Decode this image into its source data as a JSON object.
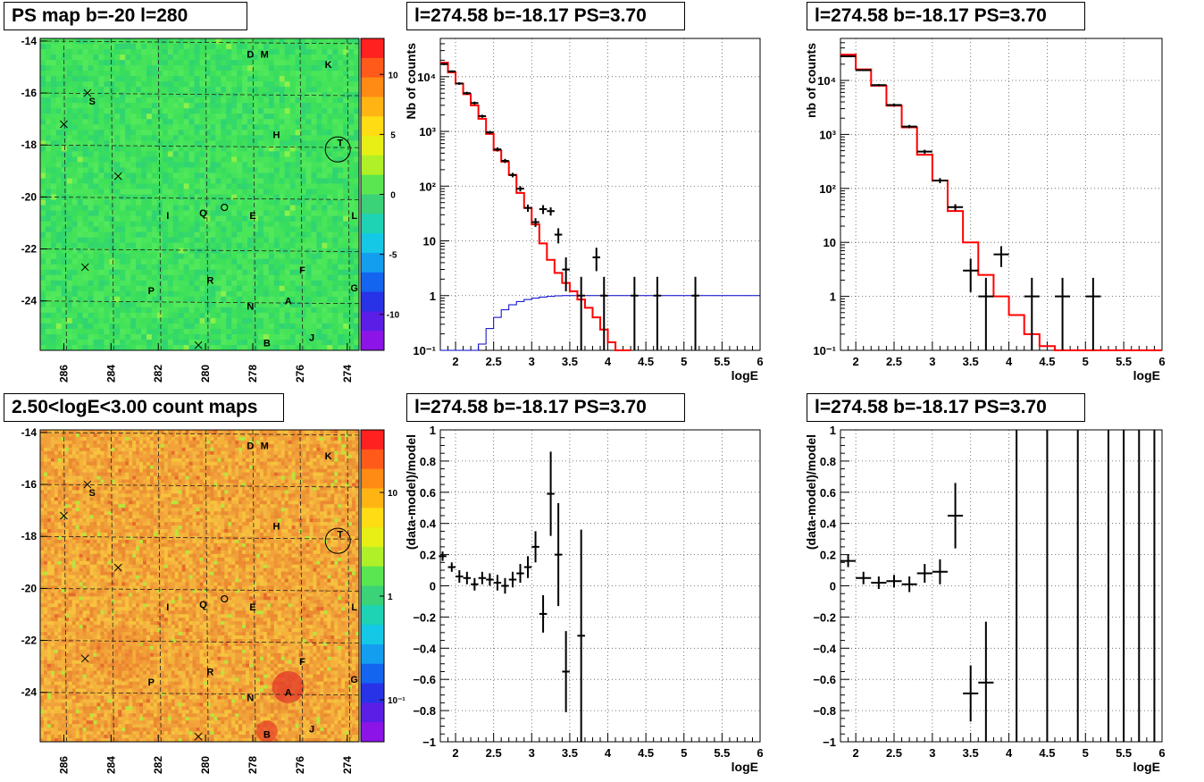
{
  "panel_titles": {
    "map_top": "PS map b=-20 l=280",
    "map_bottom": "2.50<logE<3.00 count maps",
    "spec_left": "l=274.58 b=-18.17 PS=3.70",
    "spec_right": "l=274.58 b=-18.17 PS=3.70",
    "resid_left": "l=274.58 b=-18.17 PS=3.70",
    "resid_right": "l=274.58 b=-18.17 PS=3.70"
  },
  "colors": {
    "model": "#ff0000",
    "acceptance": "#0000cc",
    "data": "#000000",
    "map_bg_top": "#3fe05a",
    "map_bg_bottom": "#f2a43a"
  },
  "chart_data": [
    {
      "id": "map_top",
      "type": "heatmap",
      "title": "PS map b=-20 l=280",
      "xlim": [
        287,
        273.5
      ],
      "ylim": [
        -25.9,
        -13.9
      ],
      "x_ticks": [
        "286",
        "284",
        "282",
        "280",
        "278",
        "276",
        "274"
      ],
      "y_ticks": [
        "-14",
        "-16",
        "-18",
        "-20",
        "-22",
        "-24"
      ],
      "colorbar": {
        "range": [
          -13,
          13
        ],
        "ticks": [
          "10",
          "5",
          "0",
          "-5",
          "-10"
        ],
        "scale": "linear"
      },
      "labels": [
        {
          "text": "D",
          "l": 278.1,
          "b": -14.5
        },
        {
          "text": "M",
          "l": 277.5,
          "b": -14.5
        },
        {
          "text": "K",
          "l": 274.8,
          "b": -14.9
        },
        {
          "text": "S",
          "l": 284.8,
          "b": -16.3
        },
        {
          "text": "H",
          "l": 277.0,
          "b": -17.6
        },
        {
          "text": "T",
          "l": 274.3,
          "b": -17.9
        },
        {
          "text": "I",
          "l": 281.6,
          "b": -20.7
        },
        {
          "text": "Q",
          "l": 280.1,
          "b": -20.6
        },
        {
          "text": "E",
          "l": 278.0,
          "b": -20.7
        },
        {
          "text": "L",
          "l": 273.7,
          "b": -20.7
        },
        {
          "text": "F",
          "l": 275.9,
          "b": -22.8
        },
        {
          "text": "R",
          "l": 279.8,
          "b": -23.2
        },
        {
          "text": "P",
          "l": 282.3,
          "b": -23.6
        },
        {
          "text": "G",
          "l": 273.7,
          "b": -23.5
        },
        {
          "text": "A",
          "l": 276.5,
          "b": -24.0
        },
        {
          "text": "N",
          "l": 278.1,
          "b": -24.2
        },
        {
          "text": "J",
          "l": 275.5,
          "b": -25.4
        },
        {
          "text": "B",
          "l": 277.4,
          "b": -25.6
        }
      ]
    },
    {
      "id": "map_bottom",
      "type": "heatmap",
      "title": "2.50<logE<3.00 count maps",
      "xlim": [
        287,
        273.5
      ],
      "ylim": [
        -25.9,
        -13.9
      ],
      "x_ticks": [
        "286",
        "284",
        "282",
        "280",
        "278",
        "276",
        "274"
      ],
      "y_ticks": [
        "-14",
        "-16",
        "-18",
        "-20",
        "-22",
        "-24"
      ],
      "colorbar": {
        "ticks": [
          "10",
          "1",
          "10⁻¹"
        ],
        "scale": "log"
      },
      "labels": "same as map_top"
    },
    {
      "id": "spec_left",
      "type": "line",
      "title": "l=274.58 b=-18.17 PS=3.70",
      "xlabel": "logE",
      "ylabel": "Nb of counts",
      "yscale": "log",
      "xlim": [
        1.8,
        6
      ],
      "ylim": [
        0.1,
        50000
      ],
      "x_ticks": [
        "2",
        "2.5",
        "3",
        "3.5",
        "4",
        "4.5",
        "5",
        "5.5",
        "6"
      ],
      "y_ticks": [
        "10⁻¹",
        "1",
        "10",
        "10²",
        "10³",
        "10⁴"
      ],
      "bin_width": 0.1,
      "model_bin_edges": [
        1.8,
        1.9,
        2.0,
        2.1,
        2.2,
        2.3,
        2.4,
        2.5,
        2.6,
        2.7,
        2.8,
        2.9,
        3.0,
        3.1,
        3.2,
        3.3,
        3.4,
        3.5,
        3.6,
        3.7,
        3.8,
        3.9,
        4.0,
        4.1,
        4.2,
        4.3,
        6.0
      ],
      "model_values": [
        18000,
        12000,
        7500,
        4800,
        3000,
        1700,
        900,
        450,
        280,
        160,
        75,
        40,
        20,
        9,
        4.5,
        2.6,
        1.7,
        1.2,
        0.85,
        0.6,
        0.4,
        0.24,
        0.14,
        0.1,
        0.1
      ],
      "acceptance_bin_edges": [
        1.8,
        2.3,
        2.4,
        2.5,
        2.6,
        2.7,
        2.8,
        2.9,
        3.0,
        3.1,
        3.2,
        3.3,
        3.4,
        3.5,
        6.0
      ],
      "acceptance_values": [
        0.08,
        0.13,
        0.25,
        0.4,
        0.55,
        0.68,
        0.78,
        0.85,
        0.9,
        0.94,
        0.97,
        0.99,
        1.0,
        1.0
      ],
      "data_points": [
        {
          "x": 1.85,
          "y": 17000,
          "lo": 16200,
          "hi": 17800
        },
        {
          "x": 1.95,
          "y": 12500,
          "lo": 12000,
          "hi": 13000
        },
        {
          "x": 2.05,
          "y": 7500,
          "lo": 7100,
          "hi": 7900
        },
        {
          "x": 2.15,
          "y": 5000,
          "lo": 4700,
          "hi": 5300
        },
        {
          "x": 2.25,
          "y": 3300,
          "lo": 3100,
          "hi": 3500
        },
        {
          "x": 2.35,
          "y": 1900,
          "lo": 1780,
          "hi": 2020
        },
        {
          "x": 2.45,
          "y": 960,
          "lo": 900,
          "hi": 1020
        },
        {
          "x": 2.55,
          "y": 470,
          "lo": 430,
          "hi": 510
        },
        {
          "x": 2.65,
          "y": 290,
          "lo": 265,
          "hi": 315
        },
        {
          "x": 2.75,
          "y": 160,
          "lo": 145,
          "hi": 175
        },
        {
          "x": 2.85,
          "y": 90,
          "lo": 80,
          "hi": 100
        },
        {
          "x": 2.95,
          "y": 40,
          "lo": 34,
          "hi": 46
        },
        {
          "x": 3.05,
          "y": 22,
          "lo": 18,
          "hi": 26
        },
        {
          "x": 3.15,
          "y": 38,
          "lo": 31,
          "hi": 45
        },
        {
          "x": 3.25,
          "y": 35,
          "lo": 29,
          "hi": 41
        },
        {
          "x": 3.35,
          "y": 13,
          "lo": 9,
          "hi": 17
        },
        {
          "x": 3.45,
          "y": 3,
          "lo": 1.2,
          "hi": 5
        },
        {
          "x": 3.65,
          "y": 1,
          "lo": 0.1,
          "hi": 2.2
        },
        {
          "x": 3.85,
          "y": 5,
          "lo": 2.8,
          "hi": 7.5
        },
        {
          "x": 3.95,
          "y": 1,
          "lo": 0.1,
          "hi": 2.2
        },
        {
          "x": 4.35,
          "y": 1,
          "lo": 0.1,
          "hi": 2.2
        },
        {
          "x": 4.65,
          "y": 1,
          "lo": 0.1,
          "hi": 2.2
        },
        {
          "x": 5.15,
          "y": 1,
          "lo": 0.1,
          "hi": 2.2
        }
      ]
    },
    {
      "id": "spec_right",
      "type": "line",
      "title": "l=274.58 b=-18.17 PS=3.70",
      "xlabel": "logE",
      "ylabel": "nb of counts",
      "yscale": "log",
      "xlim": [
        1.8,
        6
      ],
      "ylim": [
        0.1,
        60000
      ],
      "x_ticks": [
        "2",
        "2.5",
        "3",
        "3.5",
        "4",
        "4.5",
        "5",
        "5.5",
        "6"
      ],
      "y_ticks": [
        "10⁻¹",
        "1",
        "10",
        "10²",
        "10³",
        "10⁴"
      ],
      "bin_width": 0.2,
      "model_bin_edges": [
        1.8,
        2.0,
        2.2,
        2.4,
        2.6,
        2.8,
        3.0,
        3.2,
        3.4,
        3.6,
        3.8,
        4.0,
        4.2,
        4.4,
        4.6,
        6.0
      ],
      "model_values": [
        30000,
        16000,
        8000,
        3400,
        1350,
        420,
        140,
        38,
        10,
        2.5,
        1.0,
        0.45,
        0.2,
        0.12,
        0.1
      ],
      "data_points": [
        {
          "x": 1.9,
          "y": 28000,
          "lo": 27000,
          "hi": 29000
        },
        {
          "x": 2.1,
          "y": 15500,
          "lo": 14900,
          "hi": 16100
        },
        {
          "x": 2.3,
          "y": 8200,
          "lo": 7800,
          "hi": 8600
        },
        {
          "x": 2.5,
          "y": 3500,
          "lo": 3300,
          "hi": 3700
        },
        {
          "x": 2.7,
          "y": 1400,
          "lo": 1300,
          "hi": 1500
        },
        {
          "x": 2.9,
          "y": 480,
          "lo": 440,
          "hi": 520
        },
        {
          "x": 3.1,
          "y": 140,
          "lo": 125,
          "hi": 155
        },
        {
          "x": 3.3,
          "y": 45,
          "lo": 39,
          "hi": 51
        },
        {
          "x": 3.5,
          "y": 3,
          "lo": 1.2,
          "hi": 5
        },
        {
          "x": 3.7,
          "y": 1,
          "lo": 0.1,
          "hi": 2.2
        },
        {
          "x": 3.9,
          "y": 6,
          "lo": 3.5,
          "hi": 8.5
        },
        {
          "x": 4.3,
          "y": 1,
          "lo": 0.1,
          "hi": 2.2
        },
        {
          "x": 4.7,
          "y": 1,
          "lo": 0.1,
          "hi": 2.2
        },
        {
          "x": 5.1,
          "y": 1,
          "lo": 0.1,
          "hi": 2.2
        }
      ]
    },
    {
      "id": "resid_left",
      "type": "scatter",
      "title": "l=274.58 b=-18.17 PS=3.70",
      "xlabel": "logE",
      "ylabel": "(data-model)/model",
      "xlim": [
        1.8,
        6
      ],
      "ylim": [
        -1,
        1
      ],
      "x_ticks": [
        "2",
        "2.5",
        "3",
        "3.5",
        "4",
        "4.5",
        "5",
        "5.5",
        "6"
      ],
      "y_ticks": [
        "−1",
        "−0.8",
        "−0.6",
        "−0.4",
        "−0.2",
        "0",
        "0.2",
        "0.4",
        "0.6",
        "0.8",
        "1"
      ],
      "bin_width": 0.1,
      "data_points": [
        {
          "x": 1.83,
          "y": 0.19,
          "err": 0.03
        },
        {
          "x": 1.95,
          "y": 0.12,
          "err": 0.03
        },
        {
          "x": 2.05,
          "y": 0.06,
          "err": 0.04
        },
        {
          "x": 2.15,
          "y": 0.05,
          "err": 0.04
        },
        {
          "x": 2.25,
          "y": 0.01,
          "err": 0.04
        },
        {
          "x": 2.35,
          "y": 0.05,
          "err": 0.04
        },
        {
          "x": 2.45,
          "y": 0.04,
          "err": 0.04
        },
        {
          "x": 2.55,
          "y": 0.02,
          "err": 0.05
        },
        {
          "x": 2.65,
          "y": 0.0,
          "err": 0.05
        },
        {
          "x": 2.75,
          "y": 0.04,
          "err": 0.05
        },
        {
          "x": 2.85,
          "y": 0.08,
          "err": 0.06
        },
        {
          "x": 2.95,
          "y": 0.12,
          "err": 0.07
        },
        {
          "x": 3.05,
          "y": 0.25,
          "err": 0.1
        },
        {
          "x": 3.15,
          "y": -0.18,
          "err": 0.12
        },
        {
          "x": 3.25,
          "y": 0.59,
          "err": 0.27
        },
        {
          "x": 3.35,
          "y": 0.2,
          "err": 0.33
        },
        {
          "x": 3.45,
          "y": -0.55,
          "err": 0.26
        },
        {
          "x": 3.65,
          "y": -0.32,
          "err": 0.68
        }
      ]
    },
    {
      "id": "resid_right",
      "type": "scatter",
      "title": "l=274.58 b=-18.17 PS=3.70",
      "xlabel": "logE",
      "ylabel": "(data-model)/model",
      "xlim": [
        1.8,
        6
      ],
      "ylim": [
        -1,
        1
      ],
      "x_ticks": [
        "2",
        "2.5",
        "3",
        "3.5",
        "4",
        "4.5",
        "5",
        "5.5",
        "6"
      ],
      "y_ticks": [
        "−1",
        "−0.8",
        "−0.6",
        "−0.4",
        "−0.2",
        "0",
        "0.2",
        "0.4",
        "0.6",
        "0.8",
        "1"
      ],
      "bin_width": 0.2,
      "data_points": [
        {
          "x": 1.9,
          "y": 0.16,
          "err": 0.04
        },
        {
          "x": 2.1,
          "y": 0.05,
          "err": 0.04
        },
        {
          "x": 2.3,
          "y": 0.02,
          "err": 0.04
        },
        {
          "x": 2.5,
          "y": 0.03,
          "err": 0.04
        },
        {
          "x": 2.7,
          "y": 0.01,
          "err": 0.05
        },
        {
          "x": 2.9,
          "y": 0.08,
          "err": 0.06
        },
        {
          "x": 3.1,
          "y": 0.09,
          "err": 0.08
        },
        {
          "x": 3.3,
          "y": 0.45,
          "err": 0.21
        },
        {
          "x": 3.5,
          "y": -0.69,
          "err": 0.18
        },
        {
          "x": 3.7,
          "y": -0.62,
          "err": 0.39
        }
      ],
      "full_range_bars_x": [
        4.1,
        4.5,
        4.9,
        5.3,
        5.5,
        5.7,
        5.9
      ]
    }
  ]
}
